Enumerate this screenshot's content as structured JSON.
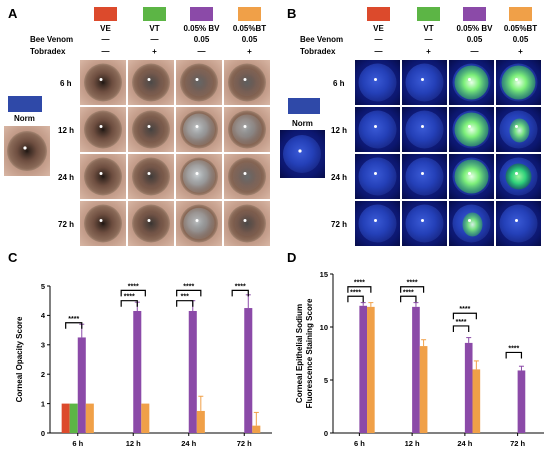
{
  "panels": {
    "A": {
      "label": "A",
      "groups": [
        "VE",
        "VT",
        "0.05% BV",
        "0.05%BT"
      ],
      "group_colors": [
        "#dc4a2c",
        "#5cb545",
        "#8b4aa8",
        "#f0a048"
      ],
      "row_labels": [
        "Bee Venom",
        "Tobradex"
      ],
      "bee_venom": [
        "—",
        "—",
        "0.05",
        "0.05"
      ],
      "tobradex": [
        "—",
        "+",
        "—",
        "+"
      ],
      "timepoints": [
        "6 h",
        "12 h",
        "24 h",
        "72 h"
      ],
      "norm_label": "Norm",
      "norm_color": "#2f49a8"
    },
    "B": {
      "label": "B",
      "groups": [
        "VE",
        "VT",
        "0.05% BV",
        "0.05%BT"
      ],
      "group_colors": [
        "#dc4a2c",
        "#5cb545",
        "#8b4aa8",
        "#f0a048"
      ],
      "row_labels": [
        "Bee Venom",
        "Tobradex"
      ],
      "bee_venom": [
        "—",
        "—",
        "0.05",
        "0.05"
      ],
      "tobradex": [
        "—",
        "+",
        "—",
        "+"
      ],
      "timepoints": [
        "6 h",
        "12 h",
        "24 h",
        "72 h"
      ],
      "norm_label": "Norm",
      "norm_color": "#2f49a8"
    },
    "C": {
      "label": "C"
    },
    "D": {
      "label": "D"
    }
  },
  "chart_data": [
    {
      "type": "bar",
      "panel": "C",
      "ylabel": "Corneal Opacity Score",
      "categories": [
        "6 h",
        "12 h",
        "24 h",
        "72 h"
      ],
      "ylim": [
        0,
        5
      ],
      "yticks": [
        "0",
        "1",
        "2",
        "3",
        "4",
        "5"
      ],
      "colors": [
        "#dc4a2c",
        "#5cb545",
        "#8b4aa8",
        "#f0a048"
      ],
      "series": [
        {
          "values": [
            1,
            0,
            0,
            0
          ]
        },
        {
          "values": [
            1,
            0,
            0,
            0
          ]
        },
        {
          "values": [
            3.25,
            4.15,
            4.15,
            4.25
          ],
          "err": [
            0.45,
            0.3,
            0.35,
            0.45
          ]
        },
        {
          "values": [
            1,
            1,
            0.75,
            0.25
          ],
          "err": [
            0,
            0,
            0.5,
            0.45
          ]
        }
      ],
      "significance": [
        {
          "text": "****",
          "cat": 0,
          "from": 0,
          "to": 2,
          "y": 3.75
        },
        {
          "text": "****",
          "cat": 1,
          "from": 0,
          "to": 3,
          "y": 4.85
        },
        {
          "text": "****",
          "cat": 1,
          "from": 0,
          "to": 2,
          "y": 4.5
        },
        {
          "text": "****",
          "cat": 2,
          "from": 0,
          "to": 3,
          "y": 4.85
        },
        {
          "text": "***",
          "cat": 2,
          "from": 0,
          "to": 2,
          "y": 4.5
        },
        {
          "text": "****",
          "cat": 3,
          "from": 0,
          "to": 2,
          "y": 4.85
        }
      ]
    },
    {
      "type": "bar",
      "panel": "D",
      "ylabel": "Corneal Epithelial Sodium\nFluorescence Staining Score",
      "categories": [
        "6 h",
        "12 h",
        "24 h",
        "72 h"
      ],
      "ylim": [
        0,
        15
      ],
      "yticks": [
        "0",
        "5",
        "10",
        "15"
      ],
      "colors": [
        "#dc4a2c",
        "#5cb545",
        "#8b4aa8",
        "#f0a048"
      ],
      "series": [
        {
          "values": [
            0,
            0,
            0,
            0
          ]
        },
        {
          "values": [
            0,
            0,
            0,
            0
          ]
        },
        {
          "values": [
            12,
            11.9,
            8.5,
            5.9
          ],
          "err": [
            0.3,
            0.4,
            0.5,
            0.4
          ]
        },
        {
          "values": [
            11.9,
            8.2,
            6,
            0
          ],
          "err": [
            0.4,
            0.6,
            0.8,
            0
          ]
        }
      ],
      "significance": [
        {
          "text": "****",
          "cat": 0,
          "from": 0,
          "to": 3,
          "y": 13.8
        },
        {
          "text": "****",
          "cat": 0,
          "from": 0,
          "to": 2,
          "y": 12.9
        },
        {
          "text": "****",
          "cat": 1,
          "from": 0,
          "to": 3,
          "y": 13.8
        },
        {
          "text": "****",
          "cat": 1,
          "from": 0,
          "to": 2,
          "y": 12.9
        },
        {
          "text": "****",
          "cat": 2,
          "from": 0,
          "to": 3,
          "y": 11.3
        },
        {
          "text": "****",
          "cat": 2,
          "from": 0,
          "to": 2,
          "y": 10.1
        },
        {
          "text": "****",
          "cat": 3,
          "from": 0,
          "to": 2,
          "y": 7.6
        }
      ]
    }
  ]
}
